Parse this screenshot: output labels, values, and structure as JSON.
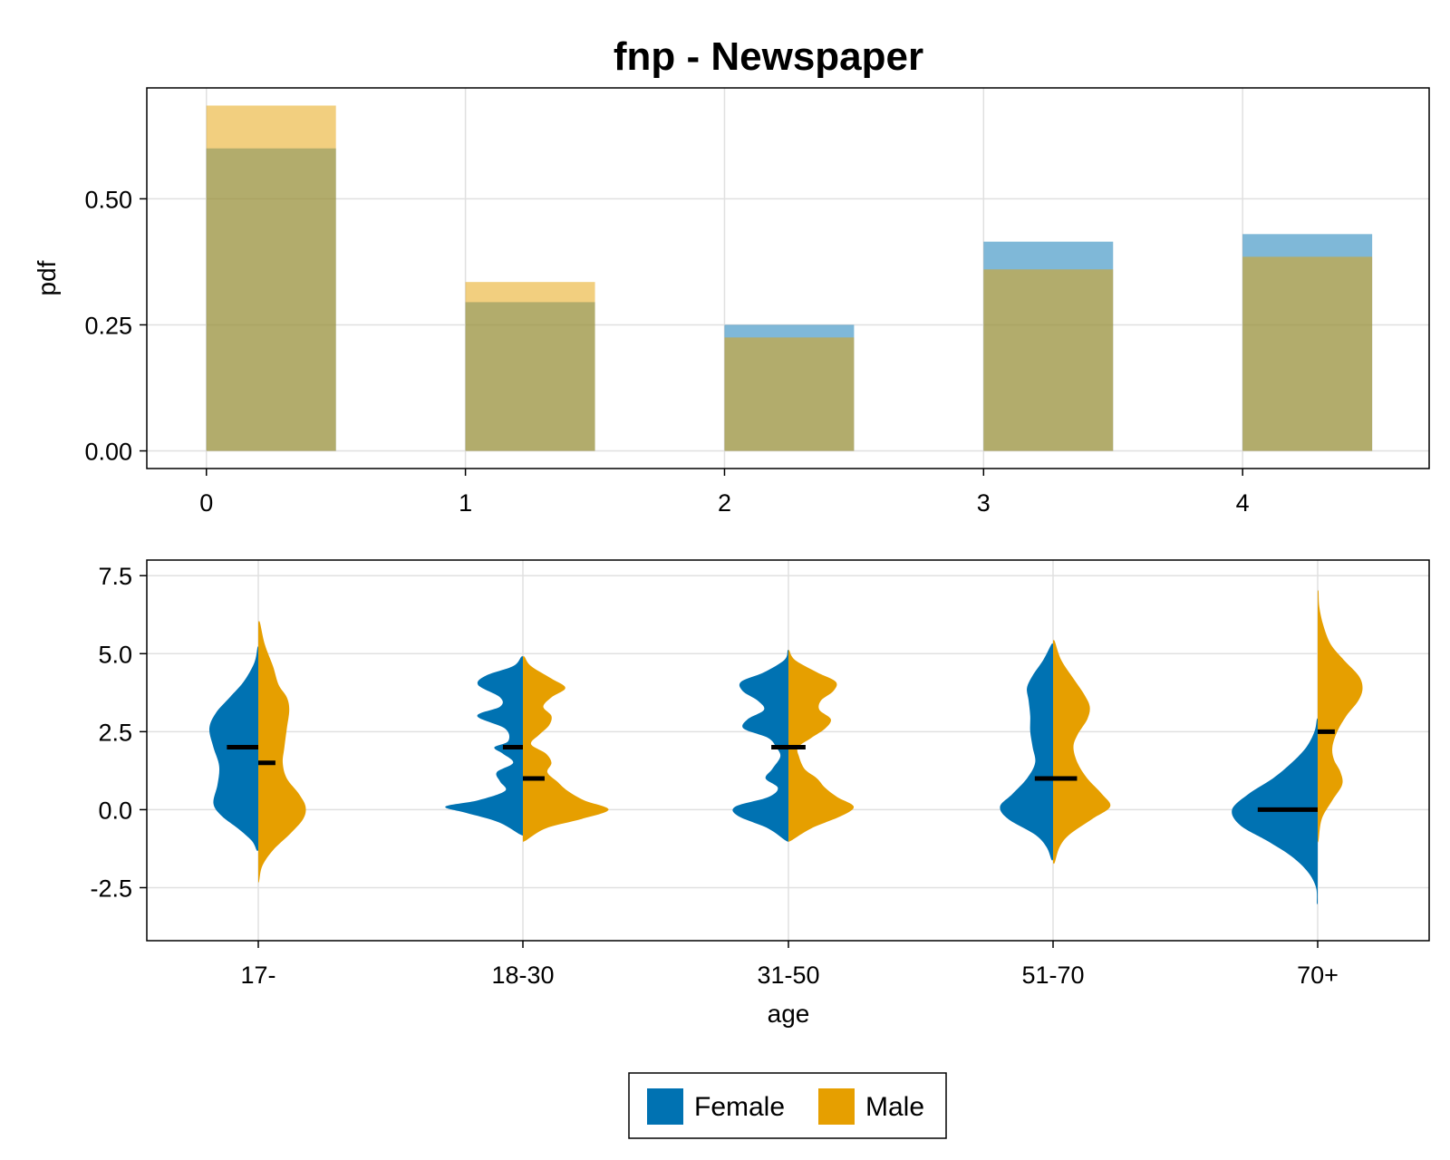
{
  "colors": {
    "female": "#0072b2",
    "male": "#e69f00"
  },
  "chart_data": [
    {
      "type": "bar",
      "title": "fnp - Newspaper",
      "xlabel": "",
      "ylabel": "pdf",
      "categories": [
        0,
        1,
        2,
        3,
        4
      ],
      "x_tick_labels": [
        "0",
        "1",
        "2",
        "3",
        "4"
      ],
      "y_tick_labels": [
        "0.00",
        "0.25",
        "0.50"
      ],
      "yticks": [
        0,
        0.25,
        0.5
      ],
      "xlim": [
        -0.23,
        4.72
      ],
      "ylim": [
        -0.035,
        0.72
      ],
      "bin_width": 0.5,
      "series": [
        {
          "name": "Female",
          "values": [
            0.6,
            0.295,
            0.25,
            0.415,
            0.43
          ]
        },
        {
          "name": "Male",
          "values": [
            0.685,
            0.335,
            0.225,
            0.36,
            0.385
          ]
        }
      ],
      "grid": true
    },
    {
      "type": "violin",
      "title": "",
      "xlabel": "age",
      "ylabel": "",
      "categories": [
        "17-",
        "18-30",
        "31-50",
        "51-70",
        "70+"
      ],
      "y_tick_labels": [
        "-2.5",
        "0.0",
        "2.5",
        "5.0",
        "7.5"
      ],
      "yticks": [
        -2.5,
        0,
        2.5,
        5,
        7.5
      ],
      "ylim": [
        -4.2,
        8.0
      ],
      "split": true,
      "medians": {
        "Female": [
          2,
          2,
          2,
          1,
          0
        ],
        "Male": [
          1.5,
          1,
          2,
          1,
          2.5
        ]
      },
      "series": [
        {
          "name": "Female",
          "profiles": [
            [
              [
                -1.3,
                0.02
              ],
              [
                -1.0,
                0.08
              ],
              [
                -0.6,
                0.25
              ],
              [
                -0.2,
                0.45
              ],
              [
                0.2,
                0.55
              ],
              [
                0.8,
                0.5
              ],
              [
                1.4,
                0.48
              ],
              [
                2.0,
                0.55
              ],
              [
                2.6,
                0.6
              ],
              [
                3.1,
                0.52
              ],
              [
                3.6,
                0.35
              ],
              [
                4.1,
                0.18
              ],
              [
                4.7,
                0.05
              ],
              [
                5.2,
                0.01
              ]
            ],
            [
              [
                -0.8,
                0.03
              ],
              [
                -0.4,
                0.3
              ],
              [
                -0.1,
                0.7
              ],
              [
                0.1,
                0.95
              ],
              [
                0.3,
                0.55
              ],
              [
                0.6,
                0.22
              ],
              [
                0.9,
                0.28
              ],
              [
                1.2,
                0.32
              ],
              [
                1.5,
                0.12
              ],
              [
                1.8,
                0.25
              ],
              [
                2.0,
                0.35
              ],
              [
                2.2,
                0.18
              ],
              [
                2.6,
                0.22
              ],
              [
                3.0,
                0.56
              ],
              [
                3.3,
                0.28
              ],
              [
                3.6,
                0.28
              ],
              [
                4.0,
                0.55
              ],
              [
                4.3,
                0.45
              ],
              [
                4.6,
                0.12
              ],
              [
                4.9,
                0.02
              ]
            ],
            [
              [
                -1.0,
                0.03
              ],
              [
                -0.6,
                0.25
              ],
              [
                -0.2,
                0.62
              ],
              [
                0.1,
                0.65
              ],
              [
                0.4,
                0.25
              ],
              [
                0.7,
                0.13
              ],
              [
                1.0,
                0.28
              ],
              [
                1.3,
                0.2
              ],
              [
                1.7,
                0.1
              ],
              [
                2.0,
                0.15
              ],
              [
                2.3,
                0.25
              ],
              [
                2.6,
                0.55
              ],
              [
                2.9,
                0.5
              ],
              [
                3.2,
                0.3
              ],
              [
                3.5,
                0.38
              ],
              [
                3.8,
                0.56
              ],
              [
                4.1,
                0.58
              ],
              [
                4.4,
                0.3
              ],
              [
                4.8,
                0.05
              ],
              [
                5.1,
                0.01
              ]
            ],
            [
              [
                -1.6,
                0.02
              ],
              [
                -1.2,
                0.08
              ],
              [
                -0.8,
                0.22
              ],
              [
                -0.3,
                0.55
              ],
              [
                0.1,
                0.65
              ],
              [
                0.5,
                0.5
              ],
              [
                1.0,
                0.32
              ],
              [
                1.5,
                0.22
              ],
              [
                2.0,
                0.25
              ],
              [
                2.5,
                0.28
              ],
              [
                3.0,
                0.28
              ],
              [
                3.5,
                0.3
              ],
              [
                3.9,
                0.32
              ],
              [
                4.3,
                0.25
              ],
              [
                4.8,
                0.12
              ],
              [
                5.3,
                0.02
              ]
            ],
            [
              [
                -3.0,
                0.01
              ],
              [
                -2.5,
                0.02
              ],
              [
                -2.0,
                0.12
              ],
              [
                -1.5,
                0.32
              ],
              [
                -1.0,
                0.62
              ],
              [
                -0.5,
                0.95
              ],
              [
                0.0,
                1.05
              ],
              [
                0.5,
                0.85
              ],
              [
                1.0,
                0.55
              ],
              [
                1.5,
                0.32
              ],
              [
                2.0,
                0.14
              ],
              [
                2.5,
                0.04
              ],
              [
                2.9,
                0.01
              ]
            ]
          ]
        },
        {
          "name": "Male",
          "profiles": [
            [
              [
                -2.3,
                0.01
              ],
              [
                -1.8,
                0.05
              ],
              [
                -1.3,
                0.18
              ],
              [
                -0.8,
                0.38
              ],
              [
                -0.3,
                0.55
              ],
              [
                0.1,
                0.58
              ],
              [
                0.5,
                0.5
              ],
              [
                1.0,
                0.35
              ],
              [
                1.5,
                0.3
              ],
              [
                2.0,
                0.32
              ],
              [
                2.6,
                0.35
              ],
              [
                3.2,
                0.38
              ],
              [
                3.6,
                0.35
              ],
              [
                4.0,
                0.25
              ],
              [
                4.6,
                0.18
              ],
              [
                5.3,
                0.08
              ],
              [
                6.0,
                0.02
              ]
            ],
            [
              [
                -1.0,
                0.03
              ],
              [
                -0.6,
                0.28
              ],
              [
                -0.3,
                0.72
              ],
              [
                0.0,
                1.05
              ],
              [
                0.3,
                0.75
              ],
              [
                0.6,
                0.55
              ],
              [
                0.9,
                0.42
              ],
              [
                1.2,
                0.3
              ],
              [
                1.5,
                0.35
              ],
              [
                1.8,
                0.28
              ],
              [
                2.1,
                0.1
              ],
              [
                2.4,
                0.2
              ],
              [
                2.7,
                0.32
              ],
              [
                3.0,
                0.35
              ],
              [
                3.3,
                0.25
              ],
              [
                3.6,
                0.35
              ],
              [
                3.9,
                0.52
              ],
              [
                4.2,
                0.35
              ],
              [
                4.6,
                0.1
              ],
              [
                4.9,
                0.02
              ]
            ],
            [
              [
                -1.0,
                0.03
              ],
              [
                -0.6,
                0.28
              ],
              [
                -0.2,
                0.65
              ],
              [
                0.1,
                0.8
              ],
              [
                0.4,
                0.6
              ],
              [
                0.7,
                0.45
              ],
              [
                1.0,
                0.35
              ],
              [
                1.3,
                0.2
              ],
              [
                1.7,
                0.13
              ],
              [
                2.0,
                0.12
              ],
              [
                2.3,
                0.28
              ],
              [
                2.6,
                0.45
              ],
              [
                2.9,
                0.52
              ],
              [
                3.2,
                0.38
              ],
              [
                3.5,
                0.4
              ],
              [
                3.8,
                0.55
              ],
              [
                4.1,
                0.58
              ],
              [
                4.4,
                0.35
              ],
              [
                4.8,
                0.08
              ],
              [
                5.1,
                0.01
              ]
            ],
            [
              [
                -1.7,
                0.02
              ],
              [
                -1.2,
                0.08
              ],
              [
                -0.8,
                0.2
              ],
              [
                -0.3,
                0.48
              ],
              [
                0.1,
                0.7
              ],
              [
                0.5,
                0.6
              ],
              [
                1.0,
                0.42
              ],
              [
                1.5,
                0.3
              ],
              [
                2.0,
                0.25
              ],
              [
                2.4,
                0.3
              ],
              [
                2.9,
                0.42
              ],
              [
                3.3,
                0.45
              ],
              [
                3.7,
                0.38
              ],
              [
                4.2,
                0.25
              ],
              [
                4.8,
                0.1
              ],
              [
                5.4,
                0.02
              ]
            ],
            [
              [
                -1.0,
                0.01
              ],
              [
                -0.3,
                0.05
              ],
              [
                0.3,
                0.18
              ],
              [
                0.8,
                0.3
              ],
              [
                1.2,
                0.28
              ],
              [
                1.6,
                0.2
              ],
              [
                2.0,
                0.18
              ],
              [
                2.5,
                0.24
              ],
              [
                3.0,
                0.35
              ],
              [
                3.5,
                0.5
              ],
              [
                3.9,
                0.55
              ],
              [
                4.3,
                0.5
              ],
              [
                4.8,
                0.32
              ],
              [
                5.3,
                0.16
              ],
              [
                5.9,
                0.07
              ],
              [
                6.5,
                0.02
              ],
              [
                7.0,
                0.01
              ]
            ]
          ]
        }
      ],
      "grid": true
    }
  ],
  "legend": {
    "placement": "bottom-center",
    "items": [
      {
        "label": "Female",
        "color": "#0072b2"
      },
      {
        "label": "Male",
        "color": "#e69f00"
      }
    ]
  }
}
